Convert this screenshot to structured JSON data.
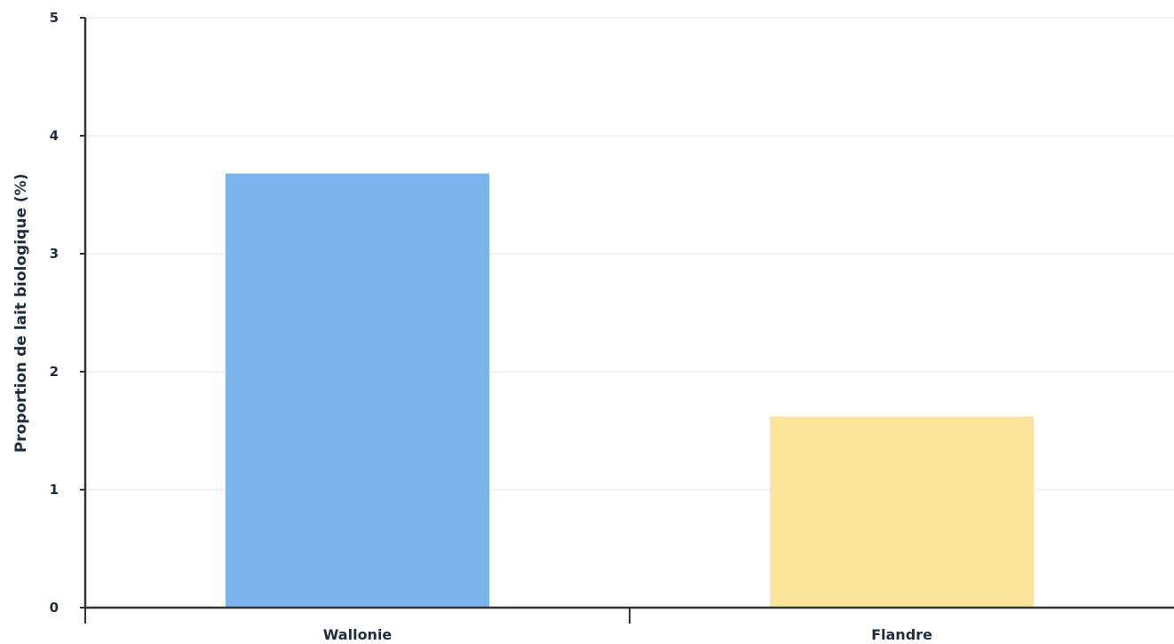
{
  "chart_data": {
    "type": "bar",
    "title": "",
    "xlabel": "",
    "ylabel": "Proportion de lait biologique (%)",
    "categories": [
      "Wallonie",
      "Flandre"
    ],
    "values": [
      3.68,
      1.62
    ],
    "colors": [
      "#7cb5ec",
      "#fde49c"
    ],
    "ylim": [
      0,
      5
    ],
    "yticks": [
      "0",
      "1",
      "2",
      "3",
      "4",
      "5"
    ],
    "grid": true,
    "legend": "none"
  },
  "colors": {
    "axis": "#333333",
    "grid": "#e6e6e6",
    "text": "#1f2d3d"
  }
}
